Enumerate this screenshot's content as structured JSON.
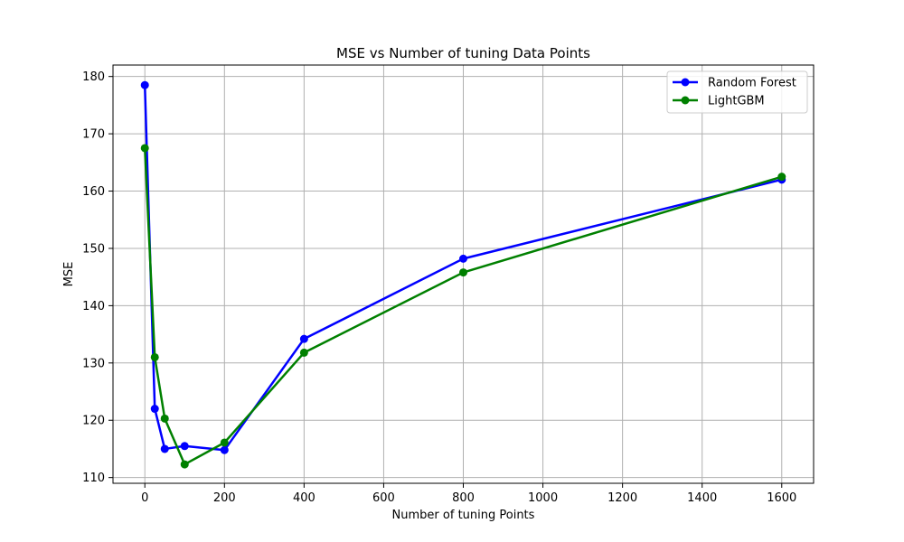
{
  "chart_data": {
    "type": "line",
    "title": "MSE vs Number of tuning Data Points",
    "xlabel": "Number of tuning Points",
    "ylabel": "MSE",
    "xlim": [
      -80,
      1680
    ],
    "ylim": [
      109,
      182
    ],
    "xticks": [
      0,
      200,
      400,
      600,
      800,
      1000,
      1200,
      1400,
      1600
    ],
    "yticks": [
      110,
      120,
      130,
      140,
      150,
      160,
      170,
      180
    ],
    "grid": true,
    "legend_position": "top-right",
    "series": [
      {
        "name": "Random Forest",
        "color": "#0000ff",
        "marker": "circle",
        "x": [
          0,
          25,
          50,
          100,
          200,
          400,
          800,
          1600
        ],
        "y": [
          178.5,
          122.0,
          115.0,
          115.5,
          114.8,
          134.2,
          148.2,
          162.0
        ]
      },
      {
        "name": "LightGBM",
        "color": "#008000",
        "marker": "circle",
        "x": [
          0,
          25,
          50,
          100,
          200,
          400,
          800,
          1600
        ],
        "y": [
          167.5,
          131.0,
          120.3,
          112.3,
          116.1,
          131.8,
          145.8,
          162.5
        ]
      }
    ]
  }
}
